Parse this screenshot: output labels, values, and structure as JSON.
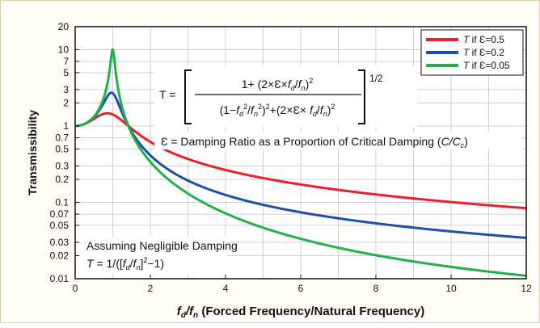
{
  "chart_data": {
    "type": "line",
    "title": "",
    "xlabel_main": "f",
    "xlabel_sub_d": "d",
    "xlabel_slash": "/",
    "xlabel_sub_n": "n",
    "xlabel_rest": " (Forced Frequency/Natural Frequency)",
    "ylabel": "Transmissibility",
    "x_scale": "linear",
    "y_scale": "log",
    "xlim": [
      0,
      12
    ],
    "ylim": [
      0.01,
      20
    ],
    "x_ticks": [
      0,
      2,
      4,
      6,
      8,
      10,
      12
    ],
    "x_tick_labels": [
      "0",
      "2",
      "4",
      "6",
      "8",
      "10",
      "12"
    ],
    "y_ticks": [
      0.01,
      0.02,
      0.03,
      0.05,
      0.07,
      0.1,
      0.2,
      0.3,
      0.5,
      0.7,
      1,
      2,
      3,
      5,
      7,
      10,
      20
    ],
    "y_tick_labels": [
      "0.01",
      "0.02",
      "0.03",
      "0.05",
      "0.07",
      "0.1",
      "0.2",
      "0.3",
      "0.5",
      "0.7",
      "1",
      "2",
      "3",
      "5",
      "7",
      "10",
      "20"
    ],
    "grid": true,
    "legend_position": "top-right",
    "series": [
      {
        "name": "T if Ɛ=0.5",
        "damping": 0.5,
        "color": "#e8202a"
      },
      {
        "name": "T if Ɛ=0.2",
        "damping": 0.2,
        "color": "#1f4fa8"
      },
      {
        "name": "T if Ɛ=0.05",
        "damping": 0.05,
        "color": "#22b04b"
      }
    ],
    "legend_items": [
      {
        "italic": "T",
        "rest": " if Ɛ=0.5"
      },
      {
        "italic": "T",
        "rest": " if Ɛ=0.2"
      },
      {
        "italic": "T",
        "rest": " if Ɛ=0.05"
      }
    ],
    "annotations": {
      "formula_lhs": "T =",
      "formula_numerator": "1+ (2×Ɛ×f_d/f_n)²",
      "formula_denominator": "(1−f_d²/f_n²)²+(2×Ɛ× f_d/f_n)²",
      "formula_exponent": "1/2",
      "damping_def_text": "Ɛ = Damping Ratio as a Proportion of Critical Damping (",
      "damping_def_c": "C/C",
      "damping_def_sub": "c",
      "damping_def_close": ")",
      "note_line1": "Assuming Negligible Damping",
      "note_line2_lhs": "T",
      "note_line2_rest": " = 1/([f_d/f_n]²−1)"
    },
    "colors": {
      "axis": "#111111",
      "grid": "#cfcfcf",
      "background": "#ffffff"
    }
  }
}
